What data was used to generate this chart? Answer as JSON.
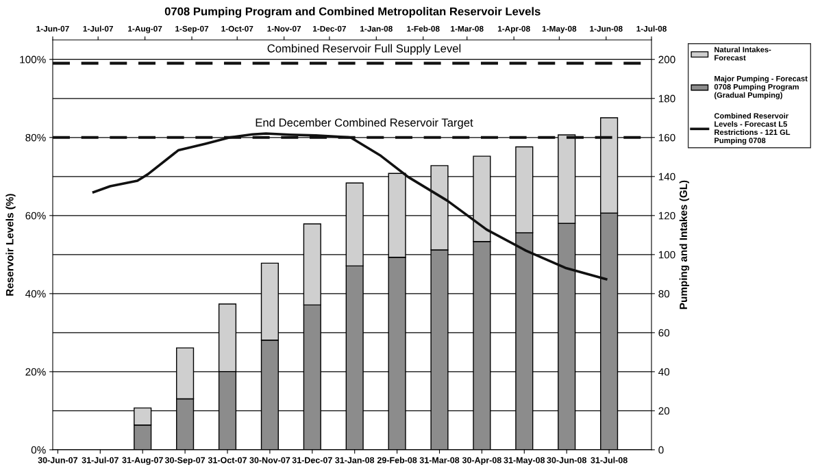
{
  "chart_data": [
    {
      "type": "bar",
      "title": "0708 Pumping Program and Combined Metropolitan Reservoir Levels",
      "ylabel": "Pumping and Intakes (GL)",
      "categories": [
        "30-Jun-07",
        "31-Jul-07",
        "31-Aug-07",
        "30-Sep-07",
        "31-Oct-07",
        "30-Nov-07",
        "31-Dec-07",
        "31-Jan-08",
        "29-Feb-08",
        "31-Mar-08",
        "30-Apr-08",
        "31-May-08",
        "30-Jun-08",
        "31-Jul-08"
      ],
      "stacked": true,
      "series": [
        {
          "name": "Major Pumping - Forecast 0708 Pumping Program (Gradual Pumping)",
          "color": "#8c8c8c",
          "values": [
            null,
            null,
            12.7,
            26.1,
            40.1,
            56.2,
            74.2,
            94.2,
            98.6,
            102.4,
            106.7,
            111.2,
            116,
            121.3
          ]
        },
        {
          "name": "Natural Intakes- Forecast",
          "color": "#cfcfcf",
          "values": [
            null,
            null,
            8.7,
            26.1,
            34.6,
            39.4,
            41.5,
            42.5,
            43,
            43.2,
            43.7,
            44,
            45.3,
            48.8
          ]
        }
      ],
      "ylim": [
        0,
        210
      ],
      "yticks": [
        0,
        20,
        40,
        60,
        80,
        100,
        120,
        140,
        160,
        180,
        200
      ],
      "grid": "y",
      "legend": "right"
    },
    {
      "type": "line",
      "ylabel": "Reservoir Levels (%)",
      "series": [
        {
          "name": "Combined Reservoir Levels - Forecast L5 Restrictions - 121 GL Pumping 0708",
          "color": "#111111",
          "x": [
            "2007-06-28",
            "2007-07-09",
            "2007-07-27",
            "2007-08-03",
            "2007-08-23",
            "2007-09-10",
            "2007-09-26",
            "2007-10-11",
            "2007-10-20",
            "2007-11-05",
            "2007-11-22",
            "2007-12-15",
            "2008-01-04",
            "2008-01-22",
            "2008-02-17",
            "2008-03-14",
            "2008-04-09",
            "2008-05-05",
            "2008-06-01"
          ],
          "values": [
            66.0,
            67.5,
            68.9,
            70.6,
            76.7,
            78.4,
            80.0,
            80.8,
            81.0,
            80.7,
            80.5,
            80.0,
            75.3,
            69.9,
            63.8,
            56.4,
            51.0,
            46.6,
            43.7
          ]
        }
      ],
      "ylim": [
        0,
        105
      ],
      "yticks": [
        {
          "value": 0,
          "label": "0%"
        },
        {
          "value": 20,
          "label": "20%"
        },
        {
          "value": 40,
          "label": "40%"
        },
        {
          "value": 60,
          "label": "60%"
        },
        {
          "value": 80,
          "label": "80%"
        },
        {
          "value": 100,
          "label": "100%"
        }
      ],
      "xlim": [
        "2007-06-01",
        "2008-07-01"
      ],
      "xticks": [
        {
          "value": "2007-06-01",
          "label": "1-Jun-07"
        },
        {
          "value": "2007-07-01",
          "label": "1-Jul-07"
        },
        {
          "value": "2007-08-01",
          "label": "1-Aug-07"
        },
        {
          "value": "2007-09-01",
          "label": "1-Sep-07"
        },
        {
          "value": "2007-10-01",
          "label": "1-Oct-07"
        },
        {
          "value": "2007-11-01",
          "label": "1-Nov-07"
        },
        {
          "value": "2007-12-01",
          "label": "1-Dec-07"
        },
        {
          "value": "2008-01-01",
          "label": "1-Jan-08"
        },
        {
          "value": "2008-02-01",
          "label": "1-Feb-08"
        },
        {
          "value": "2008-03-01",
          "label": "1-Mar-08"
        },
        {
          "value": "2008-04-01",
          "label": "1-Apr-08"
        },
        {
          "value": "2008-05-01",
          "label": "1-May-08"
        },
        {
          "value": "2008-06-01",
          "label": "1-Jun-08"
        },
        {
          "value": "2008-07-01",
          "label": "1-Jul-08"
        }
      ],
      "ref_lines": [
        {
          "axis": "y",
          "value": 99,
          "label": "Combined Reservoir Full Supply Level",
          "color": "#111111",
          "line_style": "dashed"
        },
        {
          "axis": "y",
          "value": 80,
          "label": "End December Combined Reservoir Target",
          "color": "#111111",
          "line_style": "dashed"
        }
      ],
      "legend": "right",
      "marker": "none",
      "line_style": "solid"
    }
  ]
}
